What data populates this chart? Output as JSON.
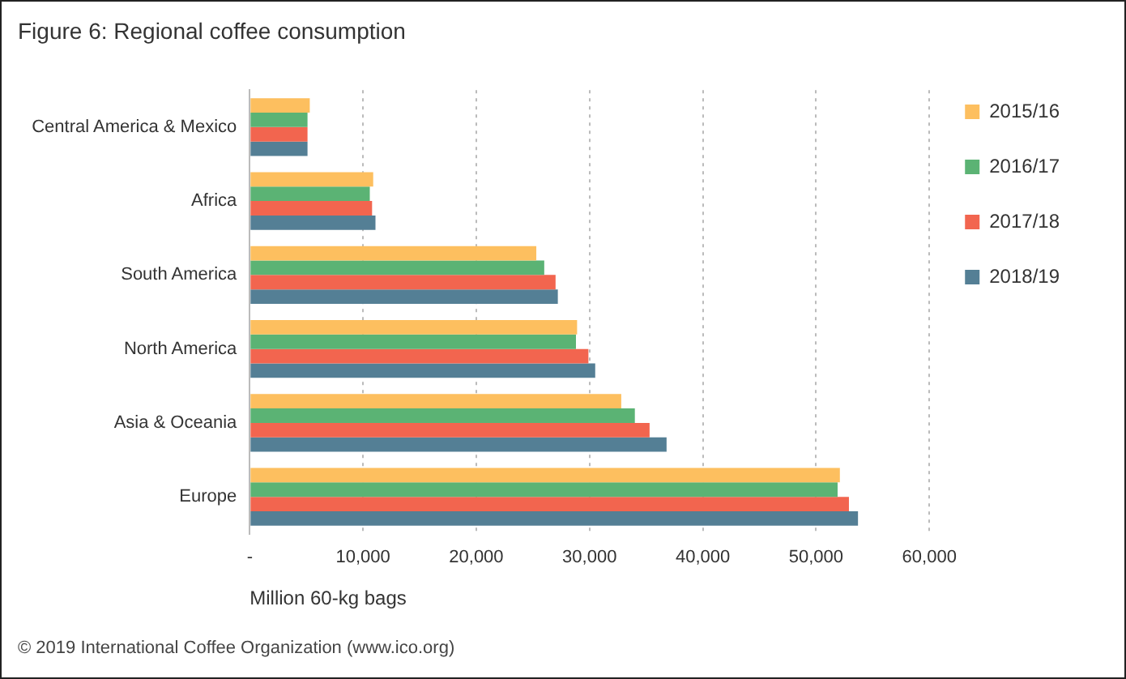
{
  "chart_data": {
    "type": "bar",
    "orientation": "horizontal",
    "title": "Figure 6: Regional coffee consumption",
    "xlabel": "Million 60-kg bags",
    "annotations": [
      "© 2019 International Coffee Organization (www.ico.org)"
    ],
    "categories": [
      "Central America & Mexico",
      "Africa",
      "South America",
      "North America",
      "Asia & Oceania",
      "Europe"
    ],
    "series": [
      {
        "name": "2015/16",
        "color": "#fdbf5f",
        "values": [
          5300,
          10900,
          25300,
          28900,
          32800,
          52100
        ]
      },
      {
        "name": "2016/17",
        "color": "#5bb374",
        "values": [
          5100,
          10600,
          26000,
          28800,
          34000,
          51900
        ]
      },
      {
        "name": "2017/18",
        "color": "#f2654f",
        "values": [
          5100,
          10800,
          27000,
          29900,
          35300,
          52900
        ]
      },
      {
        "name": "2018/19",
        "color": "#547f95",
        "values": [
          5100,
          11100,
          27200,
          30500,
          36800,
          53700
        ]
      }
    ],
    "xlim": [
      0,
      60000
    ],
    "xticks": [
      {
        "value": 0,
        "label": "-"
      },
      {
        "value": 10000,
        "label": "10,000"
      },
      {
        "value": 20000,
        "label": "20,000"
      },
      {
        "value": 30000,
        "label": "30,000"
      },
      {
        "value": 40000,
        "label": "40,000"
      },
      {
        "value": 50000,
        "label": "50,000"
      },
      {
        "value": 60000,
        "label": "60,000"
      }
    ],
    "grid": "x",
    "legend": "right"
  }
}
